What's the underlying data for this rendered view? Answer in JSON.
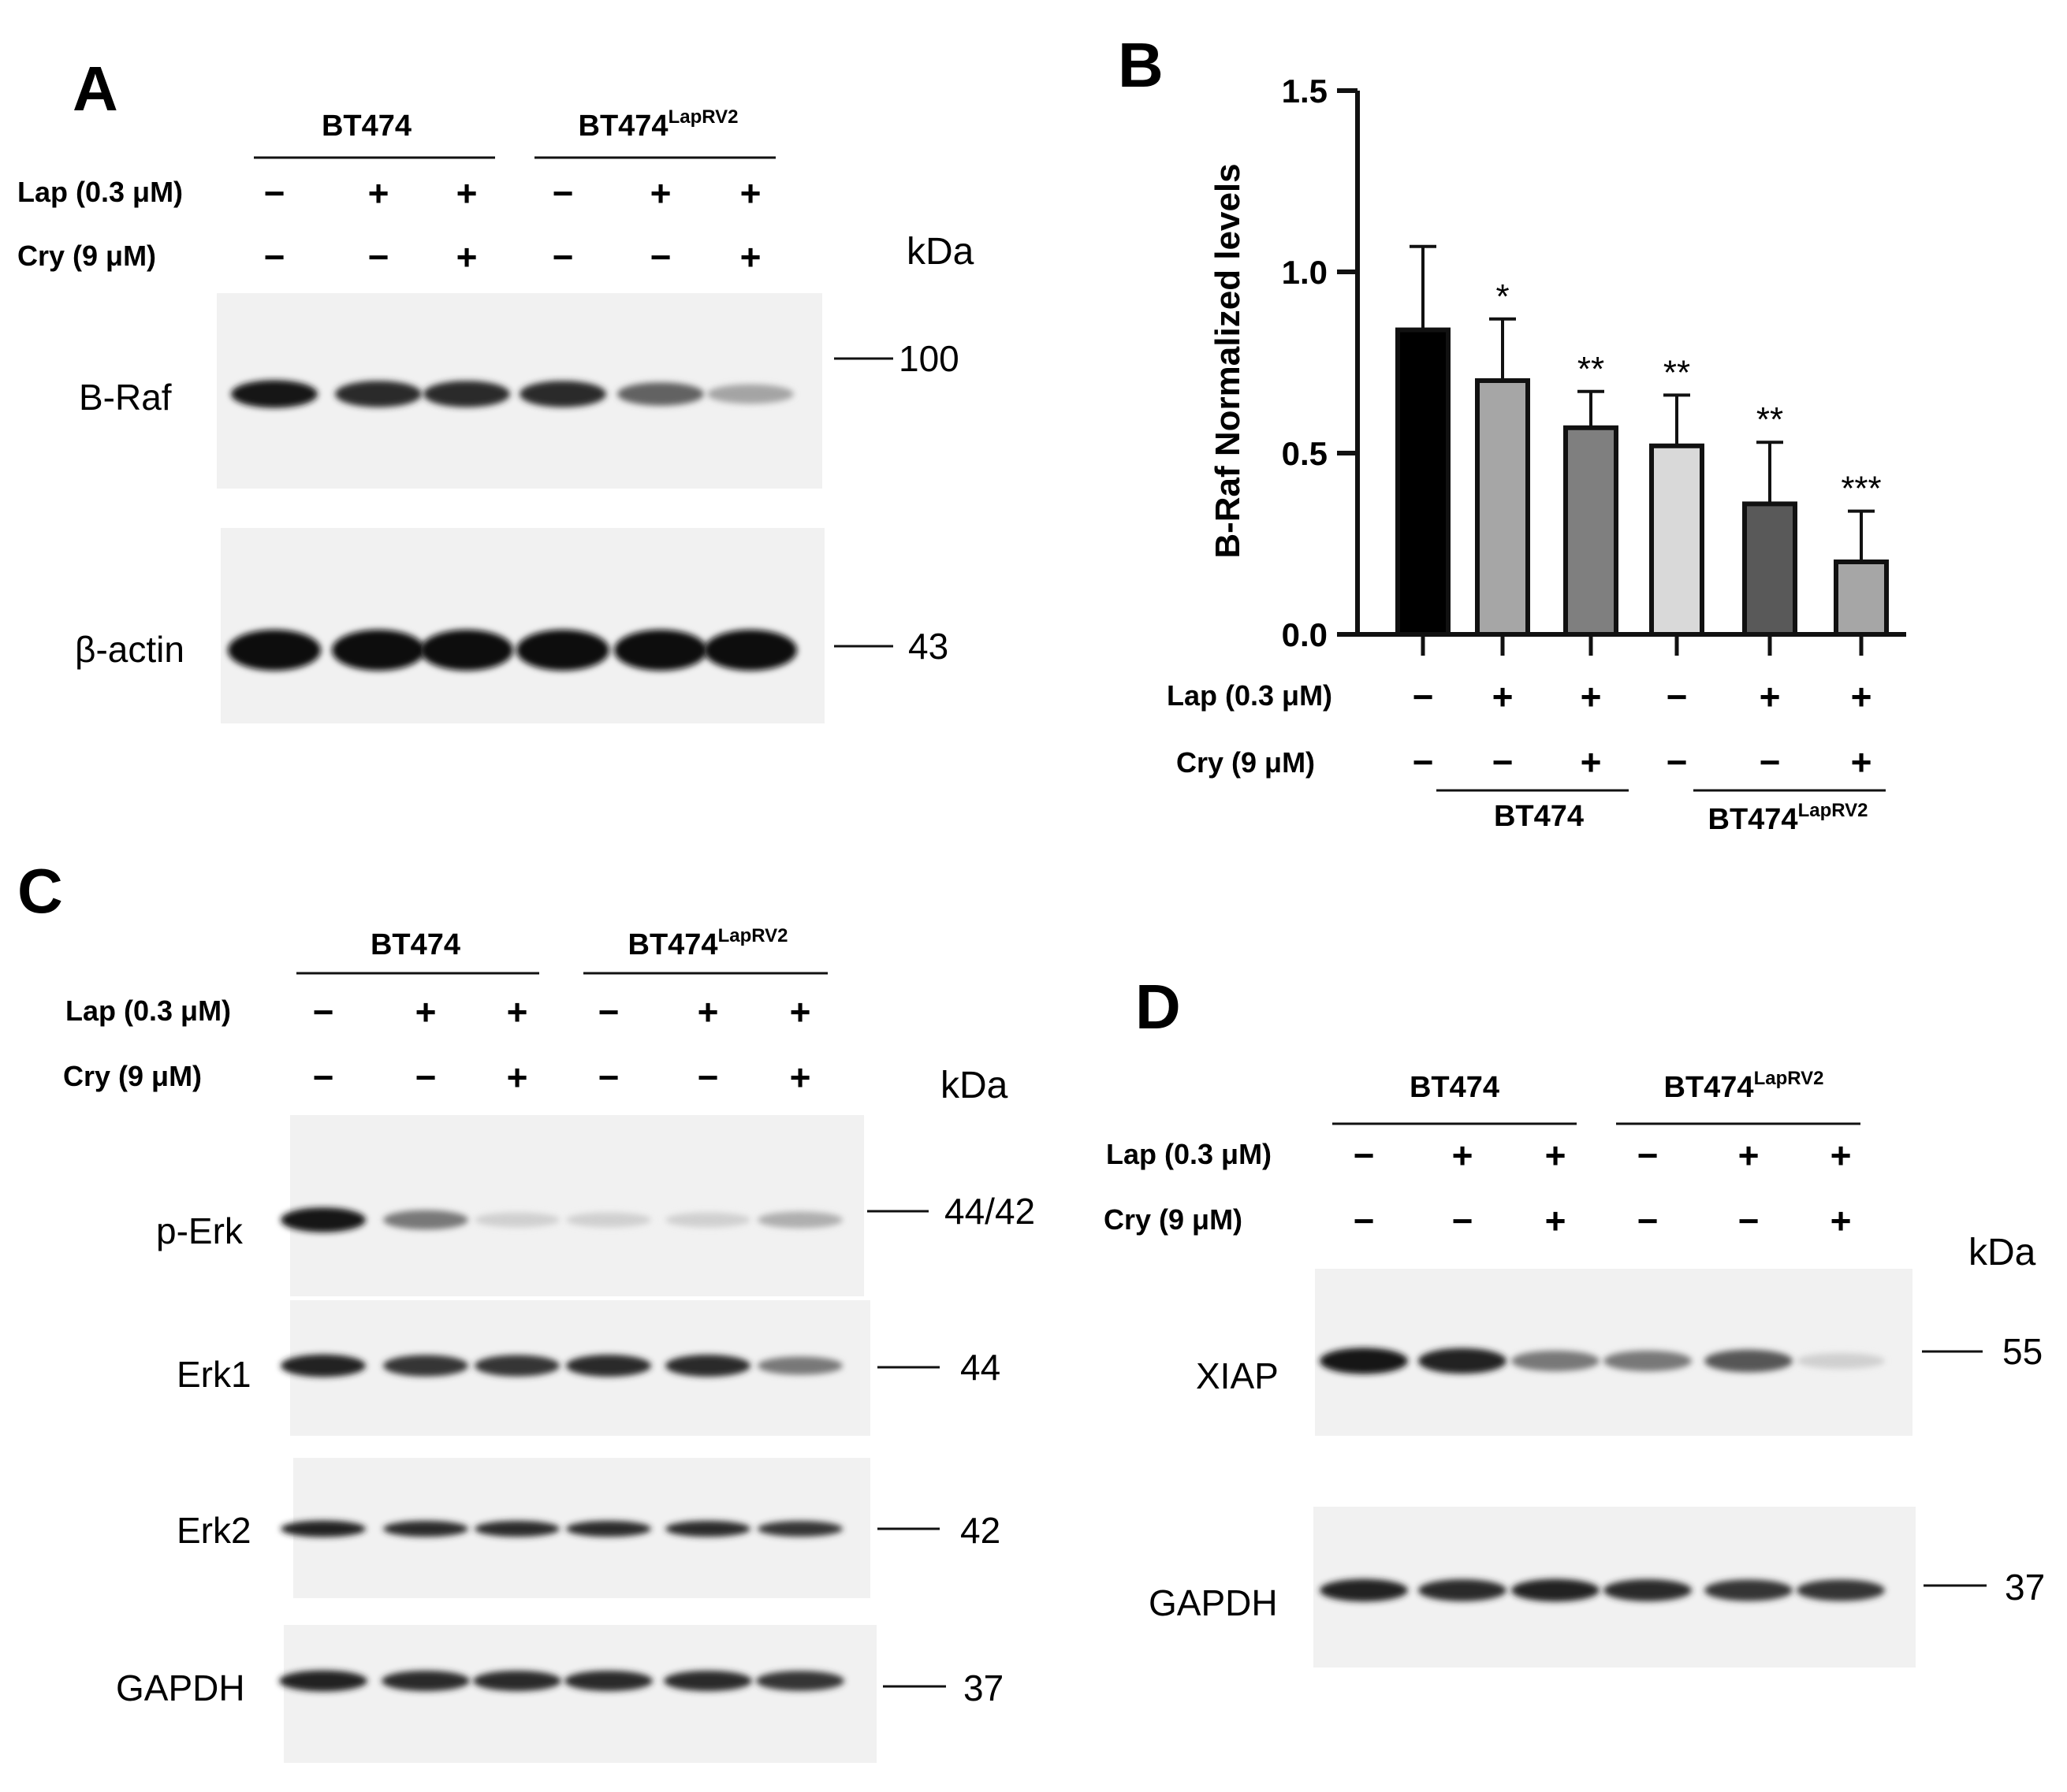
{
  "panels": [
    {
      "letter": "A",
      "groups": [
        {
          "name": "BT474",
          "sup": ""
        },
        {
          "name": "BT474",
          "sup": "LapRV2"
        }
      ],
      "treatments": [
        {
          "label": "Lap (0.3 μM)",
          "signs": [
            "−",
            "+",
            "+",
            "−",
            "+",
            "+"
          ]
        },
        {
          "label": "Cry (9 μM)",
          "signs": [
            "−",
            "−",
            "+",
            "−",
            "−",
            "+"
          ]
        }
      ],
      "kda_label": "kDa",
      "blots": [
        {
          "protein": "B-Raf",
          "mw": "100",
          "intensities": [
            0.95,
            0.85,
            0.85,
            0.85,
            0.6,
            0.3
          ]
        },
        {
          "protein": "β-actin",
          "mw": "43",
          "intensities": [
            1.0,
            1.0,
            1.0,
            1.0,
            1.0,
            1.0
          ]
        }
      ]
    },
    {
      "letter": "C",
      "groups": [
        {
          "name": "BT474",
          "sup": ""
        },
        {
          "name": "BT474",
          "sup": "LapRV2"
        }
      ],
      "treatments": [
        {
          "label": "Lap (0.3 μM)",
          "signs": [
            "−",
            "+",
            "+",
            "−",
            "+",
            "+"
          ]
        },
        {
          "label": "Cry (9 μM)",
          "signs": [
            "−",
            "−",
            "+",
            "−",
            "−",
            "+"
          ]
        }
      ],
      "kda_label": "kDa",
      "blots": [
        {
          "protein": "p-Erk",
          "mw": "44/42",
          "intensities": [
            0.95,
            0.5,
            0.1,
            0.1,
            0.1,
            0.25
          ]
        },
        {
          "protein": "Erk1",
          "mw": "44",
          "intensities": [
            0.9,
            0.8,
            0.8,
            0.85,
            0.85,
            0.5
          ]
        },
        {
          "protein": "Erk2",
          "mw": "42",
          "intensities": [
            0.9,
            0.85,
            0.85,
            0.85,
            0.85,
            0.8
          ]
        },
        {
          "protein": "GAPDH",
          "mw": "37",
          "intensities": [
            0.9,
            0.85,
            0.85,
            0.85,
            0.85,
            0.8
          ]
        }
      ]
    },
    {
      "letter": "D",
      "groups": [
        {
          "name": "BT474",
          "sup": ""
        },
        {
          "name": "BT474",
          "sup": "LapRV2"
        }
      ],
      "treatments": [
        {
          "label": "Lap (0.3 μM)",
          "signs": [
            "−",
            "+",
            "+",
            "−",
            "+",
            "+"
          ]
        },
        {
          "label": "Cry (9 μM)",
          "signs": [
            "−",
            "−",
            "+",
            "−",
            "−",
            "+"
          ]
        }
      ],
      "kda_label": "kDa",
      "blots": [
        {
          "protein": "XIAP",
          "mw": "55",
          "intensities": [
            0.95,
            0.9,
            0.5,
            0.5,
            0.65,
            0.1
          ]
        },
        {
          "protein": "GAPDH",
          "mw": "37",
          "intensities": [
            0.9,
            0.85,
            0.9,
            0.85,
            0.8,
            0.8
          ]
        }
      ]
    }
  ],
  "chart_data": {
    "panel_letter": "B",
    "type": "bar",
    "ylabel": "B-Raf Normalized levels",
    "ylim": [
      0,
      1.5
    ],
    "yticks": [
      "0.0",
      "0.5",
      "1.0",
      "1.5"
    ],
    "values": [
      0.84,
      0.7,
      0.57,
      0.52,
      0.36,
      0.2
    ],
    "errors": [
      0.23,
      0.17,
      0.1,
      0.14,
      0.17,
      0.14
    ],
    "significance": [
      "",
      "*",
      "**",
      "**",
      "**",
      "***"
    ],
    "bar_colors": [
      "#000000",
      "#a6a6a6",
      "#7f7f7f",
      "#d9d9d9",
      "#595959",
      "#a6a6a6"
    ],
    "treatments": [
      {
        "label": "Lap (0.3 μM)",
        "signs": [
          "−",
          "+",
          "+",
          "−",
          "+",
          "+"
        ]
      },
      {
        "label": "Cry (9 μM)",
        "signs": [
          "−",
          "−",
          "+",
          "−",
          "−",
          "+"
        ]
      }
    ],
    "groups": [
      {
        "name": "BT474",
        "sup": ""
      },
      {
        "name": "BT474",
        "sup": "LapRV2"
      }
    ],
    "grid": false,
    "legend": "none"
  }
}
